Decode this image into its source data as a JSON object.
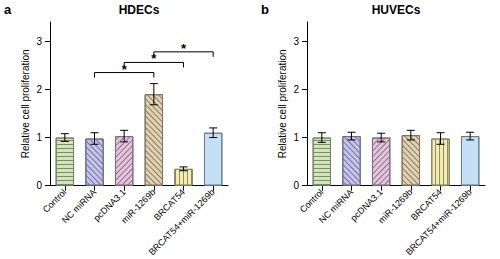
{
  "chart_data": [
    {
      "type": "bar",
      "panel": "a",
      "title": "HDECs",
      "y_label": "Relative cell proliferation",
      "categories": [
        "Control",
        "NC miRNA",
        "pcDNA3.1",
        "miR-1269b",
        "BRCAT54",
        "BRCAT54+miR-1269b"
      ],
      "values": [
        1.0,
        0.98,
        1.03,
        1.9,
        0.35,
        1.1
      ],
      "errors": [
        0.08,
        0.12,
        0.12,
        0.22,
        0.04,
        0.1
      ],
      "colors": [
        "#cfe6b8",
        "#c4c4f0",
        "#e6c4e0",
        "#e2d2b0",
        "#f2ecae",
        "#c4e0f4"
      ],
      "ylim": [
        0,
        3.4
      ],
      "yticks": [
        0,
        1,
        2,
        3
      ],
      "significance": [
        {
          "from": "NC miRNA",
          "to": "miR-1269b",
          "y": 2.35,
          "label": "*"
        },
        {
          "from": "pcDNA3.1",
          "to": "BRCAT54",
          "y": 2.56,
          "label": "*"
        },
        {
          "from": "miR-1269b",
          "to": "BRCAT54+miR-1269b",
          "y": 2.78,
          "label": "*"
        }
      ]
    },
    {
      "type": "bar",
      "panel": "b",
      "title": "HUVECs",
      "y_label": "Relative cell proliferation",
      "categories": [
        "Control",
        "NC miRNA",
        "pcDNA3.1",
        "miR-1269b",
        "BRCAT54",
        "BRCAT54+miR-1269b"
      ],
      "values": [
        1.0,
        1.03,
        1.0,
        1.05,
        0.98,
        1.03
      ],
      "errors": [
        0.1,
        0.08,
        0.09,
        0.1,
        0.12,
        0.08
      ],
      "colors": [
        "#cfe6b8",
        "#c4c4f0",
        "#e6c4e0",
        "#e2d2b0",
        "#f2ecae",
        "#c4e0f4"
      ],
      "ylim": [
        0,
        3.4
      ],
      "yticks": [
        0,
        1,
        2,
        3
      ],
      "significance": []
    }
  ]
}
